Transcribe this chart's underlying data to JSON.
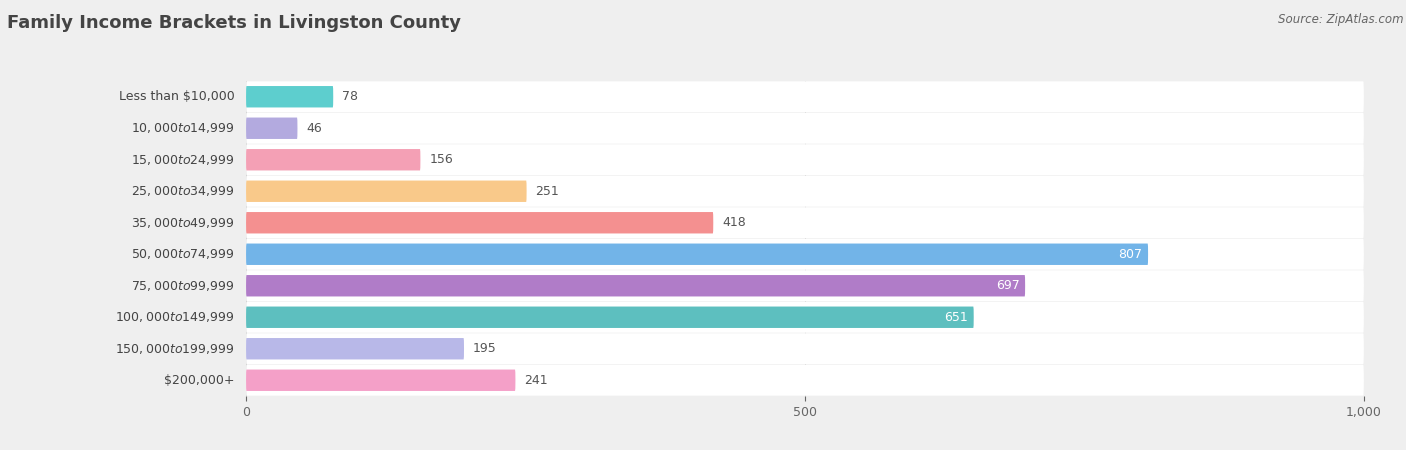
{
  "title": "Family Income Brackets in Livingston County",
  "source": "Source: ZipAtlas.com",
  "categories": [
    "Less than $10,000",
    "$10,000 to $14,999",
    "$15,000 to $24,999",
    "$25,000 to $34,999",
    "$35,000 to $49,999",
    "$50,000 to $74,999",
    "$75,000 to $99,999",
    "$100,000 to $149,999",
    "$150,000 to $199,999",
    "$200,000+"
  ],
  "values": [
    78,
    46,
    156,
    251,
    418,
    807,
    697,
    651,
    195,
    241
  ],
  "bar_colors": [
    "#5dcece",
    "#b3aadf",
    "#f4a0b5",
    "#f9c98a",
    "#f49090",
    "#72b4e8",
    "#b07cc8",
    "#5dbfbf",
    "#b8b8e8",
    "#f4a0c8"
  ],
  "bg_color": "#efefef",
  "row_bg_color": "#ffffff",
  "xlim": [
    0,
    1000
  ],
  "xticks": [
    0,
    500,
    1000
  ],
  "title_fontsize": 13,
  "label_fontsize": 9,
  "value_fontsize": 9,
  "source_fontsize": 8.5
}
